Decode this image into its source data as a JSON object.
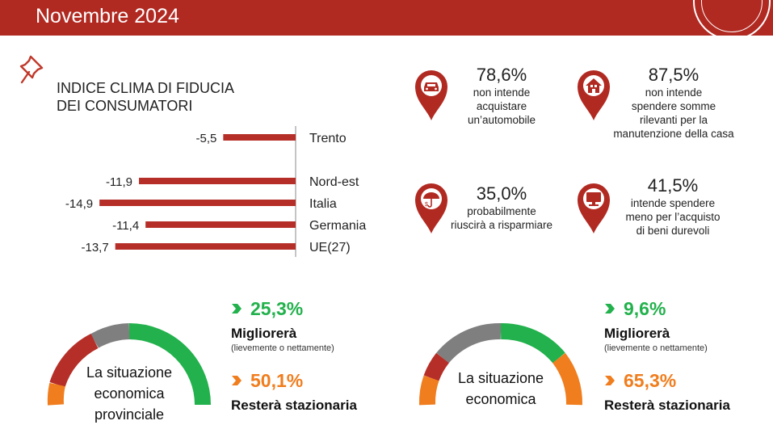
{
  "header": {
    "title": "Novembre 2024"
  },
  "index_section": {
    "title_line1": "INDICE CLIMA DI FIDUCIA",
    "title_line2": "DEI CONSUMATORI"
  },
  "chart_data": {
    "type": "bar",
    "orientation": "horizontal",
    "categories": [
      "Trento",
      "Nord-est",
      "Italia",
      "Germania",
      "UE(27)"
    ],
    "values": [
      -5.5,
      -11.9,
      -14.9,
      -11.4,
      -13.7
    ],
    "value_labels": [
      "-5,5",
      "-11,9",
      "-14,9",
      "-11,4",
      "-13,7"
    ],
    "color": "#b52f28"
  },
  "stats": [
    {
      "pct": "78,6%",
      "lines": [
        "non intende",
        "acquistare",
        "un’automobile"
      ],
      "icon": "car-icon"
    },
    {
      "pct": "87,5%",
      "lines": [
        "non intende",
        "spendere somme",
        "rilevanti per la",
        "manutenzione della casa"
      ],
      "icon": "house-icon"
    },
    {
      "pct": "35,0%",
      "lines": [
        "probabilmente",
        "riuscirà a risparmiare"
      ],
      "icon": "umbrella-money-icon"
    },
    {
      "pct": "41,5%",
      "lines": [
        "intende spendere",
        "meno per l’acquisto",
        "di beni durevoli"
      ],
      "icon": "monitor-icon"
    }
  ],
  "outlook_left": {
    "label_lines": [
      "La situazione",
      "economica",
      "provinciale"
    ],
    "improve": {
      "value": "25,3%",
      "label": "Migliorerà",
      "sub": "(lievemente o nettamente)"
    },
    "stable": {
      "value": "50,1%",
      "label": "Resterà stazionaria"
    }
  },
  "outlook_right": {
    "label_lines": [
      "La situazione",
      "economica"
    ],
    "improve": {
      "value": "9,6%",
      "label": "Migliorerà",
      "sub": "(lievemente o nettamente)"
    },
    "stable": {
      "value": "65,3%",
      "label": "Resterà stazionaria"
    }
  },
  "colors": {
    "brand": "#b12a22",
    "improve": "#22b14c",
    "stable": "#f07d1e",
    "worse": "#b52f28",
    "unknown": "#7f7f7f"
  }
}
